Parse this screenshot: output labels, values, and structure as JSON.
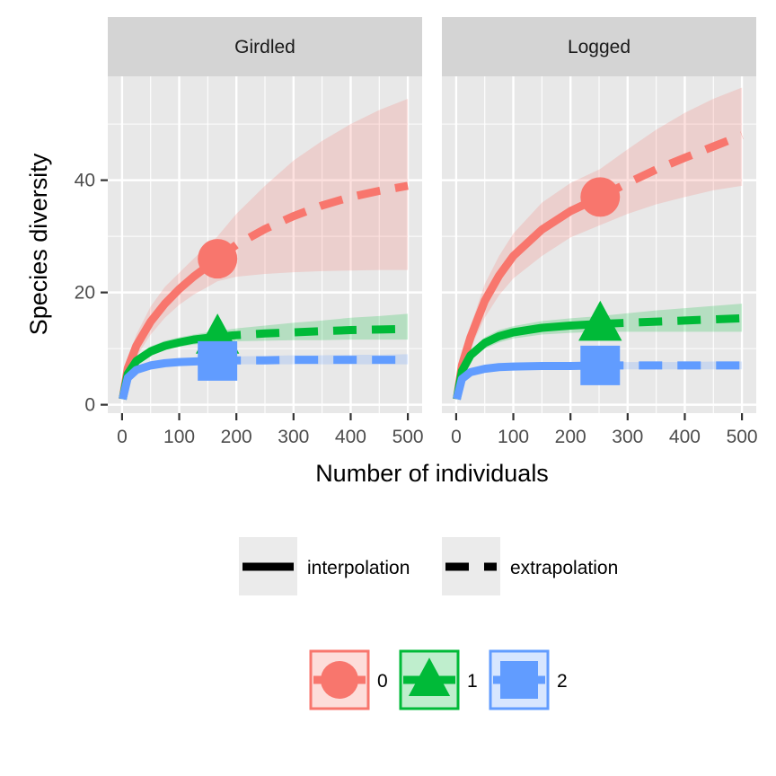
{
  "chart_data": {
    "type": "line",
    "xlabel": "Number of individuals",
    "ylabel": "Species diversity",
    "xlim": [
      -25,
      525
    ],
    "ylim": [
      -1.5,
      58.5
    ],
    "x_ticks": [
      0,
      100,
      200,
      300,
      400,
      500
    ],
    "y_ticks": [
      0,
      20,
      40
    ],
    "grid": true,
    "facets": [
      {
        "label": "Girdled",
        "observed_n": 167,
        "series": [
          {
            "order": "0",
            "color": "#F8766D",
            "shape": "circle",
            "x": [
              1,
              10,
              25,
              50,
              75,
              100,
              125,
              150,
              167,
              200,
              250,
              300,
              350,
              400,
              450,
              500
            ],
            "y": [
              1,
              6.5,
              10.5,
              14.8,
              18,
              20.6,
              22.8,
              24.7,
              26,
              28.5,
              31.3,
              33.6,
              35.5,
              37,
              38.1,
              39
            ],
            "lower": [
              1,
              5,
              8.5,
              12.5,
              15.5,
              17.8,
              19.6,
              21,
              22,
              22.8,
              23.3,
              23.6,
              23.8,
              23.9,
              24,
              24
            ],
            "upper": [
              1,
              8,
              12.5,
              17.5,
              21,
              23.5,
              26,
              28.3,
              30,
              34,
              39,
              43.5,
              47,
              50,
              52.5,
              54.5
            ]
          },
          {
            "order": "1",
            "color": "#00BA38",
            "shape": "triangle",
            "x": [
              1,
              10,
              25,
              50,
              75,
              100,
              125,
              150,
              167,
              200,
              250,
              300,
              350,
              400,
              450,
              500
            ],
            "y": [
              1,
              5.5,
              7.8,
              9.5,
              10.5,
              11.1,
              11.6,
              11.9,
              12.1,
              12.4,
              12.7,
              12.9,
              13.1,
              13.3,
              13.4,
              13.5
            ],
            "lower": [
              1,
              5,
              7.1,
              8.7,
              9.7,
              10.3,
              10.7,
              11,
              11.1,
              11.3,
              11.4,
              11.5,
              11.5,
              11.6,
              11.6,
              11.6
            ],
            "upper": [
              1,
              6,
              8.5,
              10.4,
              11.4,
              12,
              12.5,
              12.9,
              13.1,
              13.6,
              14.1,
              14.6,
              15,
              15.5,
              15.8,
              16.2
            ]
          },
          {
            "order": "2",
            "color": "#619CFF",
            "shape": "square",
            "x": [
              1,
              10,
              25,
              50,
              75,
              100,
              125,
              150,
              167,
              200,
              250,
              300,
              350,
              400,
              450,
              500
            ],
            "y": [
              1,
              4.8,
              6.2,
              7,
              7.4,
              7.6,
              7.7,
              7.8,
              7.8,
              7.9,
              7.9,
              8,
              8,
              8,
              8,
              8
            ],
            "lower": [
              1,
              4.4,
              5.7,
              6.5,
              6.8,
              7,
              7.1,
              7.2,
              7.2,
              7.2,
              7.2,
              7.2,
              7.2,
              7.2,
              7.2,
              7.2
            ],
            "upper": [
              1,
              5.2,
              6.7,
              7.5,
              7.9,
              8.2,
              8.3,
              8.4,
              8.5,
              8.6,
              8.7,
              8.8,
              8.8,
              8.9,
              8.9,
              9
            ]
          }
        ]
      },
      {
        "label": "Logged",
        "observed_n": 252,
        "series": [
          {
            "order": "0",
            "color": "#F8766D",
            "shape": "circle",
            "x": [
              1,
              10,
              25,
              50,
              75,
              100,
              150,
              200,
              252,
              300,
              350,
              400,
              450,
              500
            ],
            "y": [
              1,
              7,
              12,
              18.5,
              23,
              26.5,
              31.2,
              34.5,
              37,
              39.5,
              41.9,
              44,
              46,
              48
            ],
            "lower": [
              1,
              5.5,
              10,
              15.5,
              19.5,
              22.5,
              26.5,
              29.8,
              32,
              34,
              35.7,
              37,
              38.2,
              39
            ],
            "upper": [
              1,
              8.5,
              14,
              21.5,
              26.5,
              30.5,
              36,
              39.5,
              42,
              45.5,
              49,
              52,
              54.5,
              56.5
            ]
          },
          {
            "order": "1",
            "color": "#00BA38",
            "shape": "triangle",
            "x": [
              1,
              10,
              25,
              50,
              75,
              100,
              150,
              200,
              252,
              300,
              350,
              400,
              450,
              500
            ],
            "y": [
              1,
              6,
              8.8,
              11,
              12.2,
              12.9,
              13.7,
              14.1,
              14.4,
              14.6,
              14.8,
              15,
              15.2,
              15.4
            ],
            "lower": [
              1,
              5.5,
              8,
              10,
              11.1,
              11.8,
              12.5,
              12.8,
              13,
              13,
              13,
              13,
              13,
              13
            ],
            "upper": [
              1,
              6.5,
              9.6,
              12,
              13.3,
              14,
              14.9,
              15.4,
              15.8,
              16.3,
              16.8,
              17.2,
              17.6,
              18
            ]
          },
          {
            "order": "2",
            "color": "#619CFF",
            "shape": "square",
            "x": [
              1,
              10,
              25,
              50,
              75,
              100,
              150,
              200,
              252,
              300,
              350,
              400,
              450,
              500
            ],
            "y": [
              1,
              4.6,
              5.8,
              6.4,
              6.7,
              6.8,
              6.9,
              6.9,
              7,
              7,
              7,
              7,
              7,
              7
            ],
            "lower": [
              1,
              4.2,
              5.3,
              5.9,
              6.1,
              6.2,
              6.3,
              6.3,
              6.3,
              6.3,
              6.3,
              6.3,
              6.3,
              6.3
            ],
            "upper": [
              1,
              5,
              6.3,
              6.9,
              7.2,
              7.4,
              7.5,
              7.5,
              7.6,
              7.6,
              7.6,
              7.6,
              7.7,
              7.7
            ]
          }
        ]
      }
    ],
    "legend": {
      "placement": "bottom",
      "linetype": [
        {
          "label": "interpolation",
          "dash": "solid"
        },
        {
          "label": "extrapolation",
          "dash": "dashed"
        }
      ],
      "order": [
        {
          "label": "0",
          "color": "#F8766D",
          "shape": "circle"
        },
        {
          "label": "1",
          "color": "#00BA38",
          "shape": "triangle"
        },
        {
          "label": "2",
          "color": "#619CFF",
          "shape": "square"
        }
      ]
    }
  }
}
